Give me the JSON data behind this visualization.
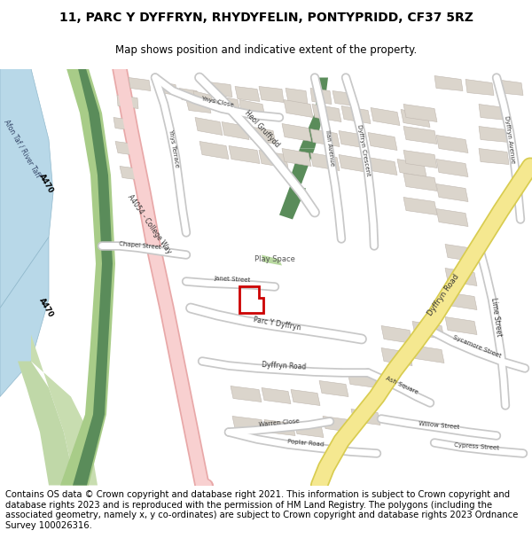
{
  "title_line1": "11, PARC Y DYFFRYN, RHYDYFELIN, PONTYPRIDD, CF37 5RZ",
  "title_line2": "Map shows position and indicative extent of the property.",
  "copyright_text": "Contains OS data © Crown copyright and database right 2021. This information is subject to Crown copyright and database rights 2023 and is reproduced with the permission of HM Land Registry. The polygons (including the associated geometry, namely x, y co-ordinates) are subject to Crown copyright and database rights 2023 Ordnance Survey 100026316.",
  "map_bg": "#f0ede6",
  "road_white": "#ffffff",
  "road_grey": "#d8d8d8",
  "road_pink_fill": "#f5c8c8",
  "road_pink_out": "#e0a0a0",
  "road_yellow_fill": "#f5e8a0",
  "road_yellow_out": "#d4c060",
  "water_color": "#b8d8e8",
  "green_dark": "#5a8c5a",
  "green_med": "#7ab07a",
  "green_light": "#a8d0a8",
  "green_park": "#c8e0b8",
  "building_fill": "#dbd5cc",
  "building_out": "#c0b8b0",
  "property_red": "#cc0000",
  "title_fontsize": 10,
  "subtitle_fontsize": 8.5,
  "copyright_fontsize": 7.2
}
